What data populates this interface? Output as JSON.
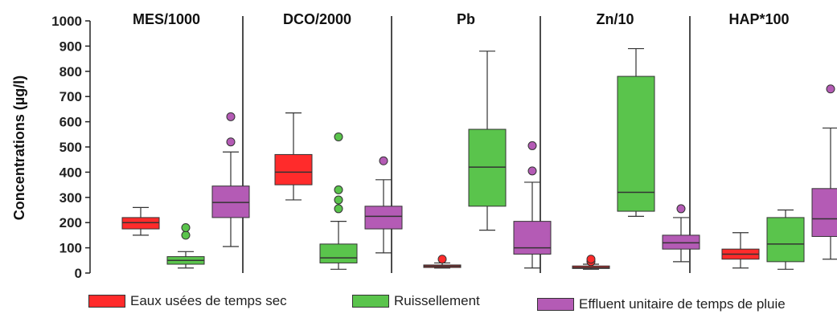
{
  "chart_data": {
    "type": "boxplot",
    "ylabel": "Concentrations  (µg/l)",
    "ylim": [
      0,
      1000
    ],
    "yticks": [
      0,
      100,
      200,
      300,
      400,
      500,
      600,
      700,
      800,
      900,
      1000
    ],
    "panels": [
      {
        "title": "MES/1000",
        "boxes": [
          {
            "series": "Eaux usées de temps sec",
            "min": 150,
            "q1": 175,
            "median": 200,
            "q3": 220,
            "max": 260,
            "outliers": []
          },
          {
            "series": "Ruissellement",
            "min": 20,
            "q1": 35,
            "median": 50,
            "q3": 65,
            "max": 85,
            "outliers": [
              150,
              180
            ]
          },
          {
            "series": "Effluent unitaire de temps de pluie",
            "min": 105,
            "q1": 220,
            "median": 280,
            "q3": 345,
            "max": 480,
            "outliers": [
              520,
              620
            ]
          }
        ]
      },
      {
        "title": "DCO/2000",
        "boxes": [
          {
            "series": "Eaux usées de temps sec",
            "min": 290,
            "q1": 350,
            "median": 400,
            "q3": 470,
            "max": 635,
            "outliers": []
          },
          {
            "series": "Ruissellement",
            "min": 15,
            "q1": 40,
            "median": 60,
            "q3": 115,
            "max": 205,
            "outliers": [
              255,
              290,
              330,
              540
            ]
          },
          {
            "series": "Effluent unitaire de temps de pluie",
            "min": 80,
            "q1": 175,
            "median": 225,
            "q3": 265,
            "max": 370,
            "outliers": [
              445
            ]
          }
        ]
      },
      {
        "title": "Pb",
        "boxes": [
          {
            "series": "Eaux usées de temps sec",
            "min": 20,
            "q1": 22,
            "median": 27,
            "q3": 32,
            "max": 40,
            "outliers": [
              55
            ]
          },
          {
            "series": "Ruissellement",
            "min": 170,
            "q1": 265,
            "median": 420,
            "q3": 570,
            "max": 880,
            "outliers": []
          },
          {
            "series": "Effluent unitaire de temps de pluie",
            "min": 20,
            "q1": 75,
            "median": 100,
            "q3": 205,
            "max": 360,
            "outliers": [
              405,
              505
            ]
          }
        ]
      },
      {
        "title": "Zn/10",
        "boxes": [
          {
            "series": "Eaux usées de temps sec",
            "min": 15,
            "q1": 18,
            "median": 22,
            "q3": 28,
            "max": 35,
            "outliers": [
              45,
              55
            ]
          },
          {
            "series": "Ruissellement",
            "min": 225,
            "q1": 245,
            "median": 320,
            "q3": 780,
            "max": 890,
            "outliers": []
          },
          {
            "series": "Effluent unitaire de temps de pluie",
            "min": 45,
            "q1": 95,
            "median": 120,
            "q3": 150,
            "max": 220,
            "outliers": [
              255
            ]
          }
        ]
      },
      {
        "title": "HAP*100",
        "boxes": [
          {
            "series": "Eaux usées de temps sec",
            "min": 20,
            "q1": 55,
            "median": 75,
            "q3": 95,
            "max": 160,
            "outliers": []
          },
          {
            "series": "Ruissellement",
            "min": 15,
            "q1": 45,
            "median": 115,
            "q3": 220,
            "max": 250,
            "outliers": []
          },
          {
            "series": "Effluent unitaire de temps de pluie",
            "min": 55,
            "q1": 145,
            "median": 215,
            "q3": 335,
            "max": 575,
            "outliers": [
              730
            ]
          }
        ]
      }
    ],
    "series": [
      {
        "name": "Eaux usées de temps sec",
        "color": "#ff2b2b"
      },
      {
        "name": "Ruissellement",
        "color": "#5ac44c"
      },
      {
        "name": "Effluent unitaire de temps de pluie",
        "color": "#b45bb5"
      }
    ],
    "grid": false,
    "legend_position": "bottom"
  }
}
